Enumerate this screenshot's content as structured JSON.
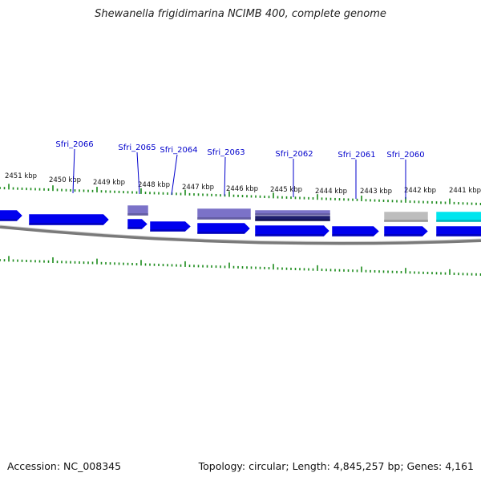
{
  "title": "Shewanella frigidimarina NCIMB 400, complete genome",
  "accession": "Accession: NC_008345",
  "summary": "Topology: circular; Length: 4,845,257 bp; Genes: 4,161",
  "colors": {
    "gene_blue": "#0000ee",
    "gene_dark": "#1e1e6e",
    "gene_purple": "#7b72c8",
    "gene_gray": "#bdbdbd",
    "gene_cyan": "#00e5ee",
    "label": "#0000cc",
    "ticks": "#1a8a1a",
    "backbone": "#7a7a7a"
  },
  "ruler": [
    {
      "label": "2451 kbp"
    },
    {
      "label": "2450 kbp"
    },
    {
      "label": "2449 kbp"
    },
    {
      "label": "2448 kbp"
    },
    {
      "label": "2447 kbp"
    },
    {
      "label": "2446 kbp"
    },
    {
      "label": "2445 kbp"
    },
    {
      "label": "2444 kbp"
    },
    {
      "label": "2443 kbp"
    },
    {
      "label": "2442 kbp"
    },
    {
      "label": "2441 kbp"
    }
  ],
  "gene_labels": [
    {
      "name": "Sfri_2066"
    },
    {
      "name": "Sfri_2065"
    },
    {
      "name": "Sfri_2064"
    },
    {
      "name": "Sfri_2063"
    },
    {
      "name": "Sfri_2062"
    },
    {
      "name": "Sfri_2061"
    },
    {
      "name": "Sfri_2060"
    }
  ]
}
